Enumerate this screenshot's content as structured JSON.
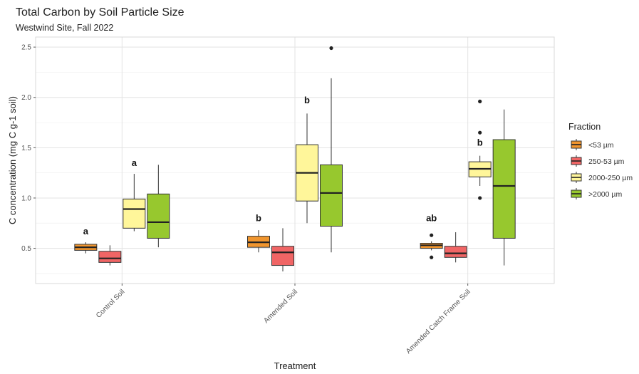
{
  "chart_data": {
    "type": "box",
    "title": "Total Carbon by Soil Particle Size",
    "subtitle": "Westwind Site, Fall 2022",
    "xlabel": "Treatment",
    "ylabel": "C concentration (mg C g-1 soil)",
    "ylim": [
      0.15,
      2.6
    ],
    "yticks": [
      0.5,
      1.0,
      1.5,
      2.0,
      2.5
    ],
    "yticks_labels": [
      "0.5",
      "1.0",
      "1.5",
      "2.0",
      "2.5"
    ],
    "grid": true,
    "legend": {
      "title": "Fraction",
      "placement": "right",
      "entries": [
        "<53 µm",
        "250-53 µm",
        "2000-250 µm",
        ">2000 µm"
      ]
    },
    "categories": [
      "Control Soil",
      "Amended Soil",
      "Amended Catch Frame Soil"
    ],
    "series": [
      {
        "name": "<53 µm",
        "color": "#F0952E",
        "boxes": [
          {
            "min": 0.45,
            "q1": 0.48,
            "median": 0.51,
            "q3": 0.54,
            "max": 0.56,
            "outliers": []
          },
          {
            "min": 0.46,
            "q1": 0.51,
            "median": 0.56,
            "q3": 0.62,
            "max": 0.68,
            "outliers": []
          },
          {
            "min": 0.48,
            "q1": 0.5,
            "median": 0.53,
            "q3": 0.55,
            "max": 0.57,
            "outliers": [
              0.41,
              0.63
            ]
          }
        ]
      },
      {
        "name": "250-53 µm",
        "color": "#F06565",
        "boxes": [
          {
            "min": 0.33,
            "q1": 0.36,
            "median": 0.4,
            "q3": 0.47,
            "max": 0.53,
            "outliers": []
          },
          {
            "min": 0.27,
            "q1": 0.33,
            "median": 0.46,
            "q3": 0.52,
            "max": 0.7,
            "outliers": []
          },
          {
            "min": 0.36,
            "q1": 0.41,
            "median": 0.45,
            "q3": 0.52,
            "max": 0.66,
            "outliers": []
          }
        ]
      },
      {
        "name": "2000-250 µm",
        "color": "#FFF69A",
        "boxes": [
          {
            "min": 0.67,
            "q1": 0.7,
            "median": 0.89,
            "q3": 0.99,
            "max": 1.24,
            "outliers": []
          },
          {
            "min": 0.75,
            "q1": 0.97,
            "median": 1.25,
            "q3": 1.53,
            "max": 1.84,
            "outliers": []
          },
          {
            "min": 1.12,
            "q1": 1.21,
            "median": 1.29,
            "q3": 1.36,
            "max": 1.42,
            "outliers": [
              1.0,
              1.65,
              1.96
            ]
          }
        ]
      },
      {
        "name": ">2000 µm",
        "color": "#97C82E",
        "boxes": [
          {
            "min": 0.51,
            "q1": 0.6,
            "median": 0.76,
            "q3": 1.04,
            "max": 1.33,
            "outliers": []
          },
          {
            "min": 0.46,
            "q1": 0.72,
            "median": 1.05,
            "q3": 1.33,
            "max": 2.19,
            "outliers": [
              2.49
            ]
          },
          {
            "min": 0.33,
            "q1": 0.6,
            "median": 1.12,
            "q3": 1.58,
            "max": 1.88,
            "outliers": []
          }
        ]
      }
    ],
    "annotations": [
      {
        "category": 0,
        "series": 0,
        "text": "a",
        "y": 0.64
      },
      {
        "category": 0,
        "series": 2,
        "text": "a",
        "y": 1.32
      },
      {
        "category": 1,
        "series": 0,
        "text": "b",
        "y": 0.77
      },
      {
        "category": 1,
        "series": 2,
        "text": "b",
        "y": 1.94
      },
      {
        "category": 2,
        "series": 0,
        "text": "ab",
        "y": 0.77
      },
      {
        "category": 2,
        "series": 2,
        "text": "b",
        "y": 1.52
      }
    ]
  }
}
